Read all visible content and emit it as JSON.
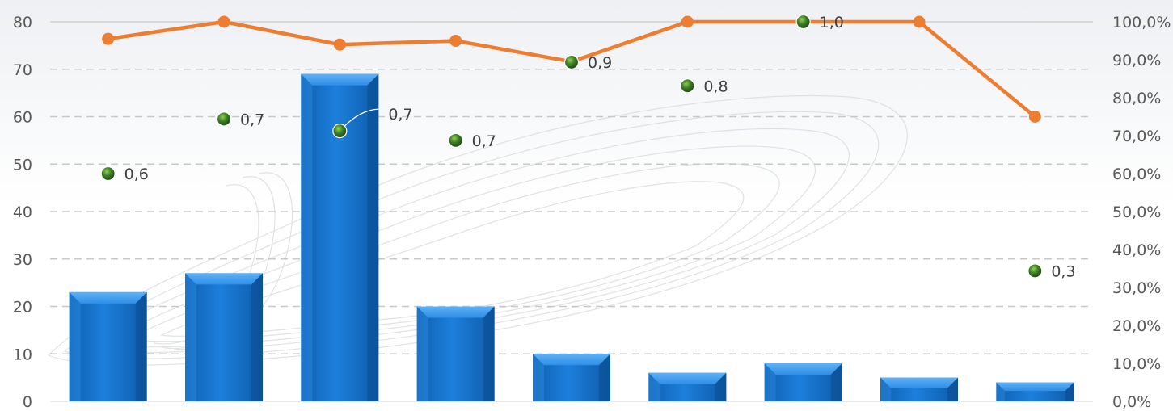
{
  "chart_data": {
    "type": "bar",
    "categories": [
      "",
      "",
      "",
      "",
      "",
      "",
      "",
      "",
      ""
    ],
    "series": [
      {
        "type": "bar",
        "axis": "left",
        "values": [
          23,
          27,
          69,
          20,
          10,
          6,
          8,
          5,
          4
        ]
      },
      {
        "type": "line",
        "axis": "right",
        "values": [
          95.5,
          100,
          94,
          95,
          89.5,
          100,
          100,
          100,
          75
        ]
      },
      {
        "type": "scatter",
        "axis": "left",
        "values": [
          48,
          59.5,
          57,
          55,
          71.5,
          66.5,
          80,
          null,
          27.5
        ],
        "labels": [
          "0,6",
          "0,7",
          "0,7",
          "0,7",
          "0,9",
          "0,8",
          "1,0",
          "",
          "0,3"
        ]
      }
    ],
    "yaxis_left": {
      "min": 0,
      "max": 80,
      "ticks": [
        "0",
        "10",
        "20",
        "30",
        "40",
        "50",
        "60",
        "70",
        "80"
      ]
    },
    "yaxis_right": {
      "min": 0,
      "max": 100,
      "ticks": [
        "0,0%",
        "10,0%",
        "20,0%",
        "30,0%",
        "40,0%",
        "50,0%",
        "60,0%",
        "70,0%",
        "80,0%",
        "90,0%",
        "100,0%"
      ]
    },
    "grid": true,
    "legend": "none",
    "colors": {
      "bar": "#1a73c8",
      "line": "#ed7d31",
      "dots": "#3f7a2a",
      "grid": "#c8c8c8"
    }
  }
}
